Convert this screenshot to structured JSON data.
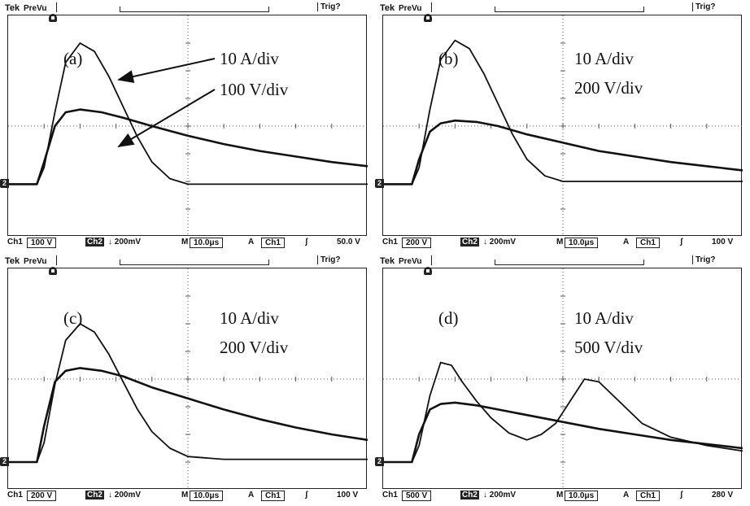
{
  "panels": [
    {
      "tek": "Tek",
      "prevu": "PreVu",
      "trig": "Trig?",
      "ch_marker": "2",
      "panel_label": "(a)",
      "scale_current": "10 A/div",
      "scale_voltage": "100 V/div",
      "status": {
        "ch1": "Ch1",
        "ch1_scale": "100 V",
        "ch2": "Ch2",
        "ch2_scale": "↓ 200mV",
        "m": "M",
        "timebase": "10.0μs",
        "a": "A",
        "trig_src": "Ch1",
        "trig_slope": "ʃ",
        "trig_level": "50.0 V"
      }
    },
    {
      "tek": "Tek",
      "prevu": "PreVu",
      "trig": "Trig?",
      "ch_marker": "2",
      "panel_label": "(b)",
      "scale_current": "10 A/div",
      "scale_voltage": "200 V/div",
      "status": {
        "ch1": "Ch1",
        "ch1_scale": "200 V",
        "ch2": "Ch2",
        "ch2_scale": "↓ 200mV",
        "m": "M",
        "timebase": "10.0μs",
        "a": "A",
        "trig_src": "Ch1",
        "trig_slope": "ʃ",
        "trig_level": "100 V"
      }
    },
    {
      "tek": "Tek",
      "prevu": "PreVu",
      "trig": "Trig?",
      "ch_marker": "2",
      "panel_label": "(c)",
      "scale_current": "10 A/div",
      "scale_voltage": "200 V/div",
      "status": {
        "ch1": "Ch1",
        "ch1_scale": "200 V",
        "ch2": "Ch2",
        "ch2_scale": "↓ 200mV",
        "m": "M",
        "timebase": "10.0μs",
        "a": "A",
        "trig_src": "Ch1",
        "trig_slope": "ʃ",
        "trig_level": "100 V"
      }
    },
    {
      "tek": "Tek",
      "prevu": "PreVu",
      "trig": "Trig?",
      "ch_marker": "2",
      "panel_label": "(d)",
      "scale_current": "10 A/div",
      "scale_voltage": "500 V/div",
      "status": {
        "ch1": "Ch1",
        "ch1_scale": "500 V",
        "ch2": "Ch2",
        "ch2_scale": "↓ 200mV",
        "m": "M",
        "timebase": "10.0μs",
        "a": "A",
        "trig_src": "Ch1",
        "trig_slope": "ʃ",
        "trig_level": "280 V"
      }
    }
  ],
  "chart_data": [
    {
      "type": "line",
      "panel": "(a)",
      "x_unit_per_div": "10.0μs",
      "grid": true,
      "xlim": [
        0,
        10
      ],
      "ylim": [
        -4,
        4
      ],
      "series": [
        {
          "name": "10 A/div",
          "x": [
            0,
            0.8,
            1.0,
            1.3,
            1.6,
            2.0,
            2.4,
            2.8,
            3.2,
            3.6,
            4.0,
            4.5,
            5.0,
            6.0,
            8.0,
            10.0
          ],
          "y": [
            -2.1,
            -2.1,
            -1.5,
            0.5,
            2.3,
            3.0,
            2.7,
            1.8,
            0.7,
            -0.4,
            -1.3,
            -1.9,
            -2.1,
            -2.1,
            -2.1,
            -2.1
          ]
        },
        {
          "name": "100 V/div",
          "x": [
            0,
            0.8,
            1.0,
            1.3,
            1.6,
            2.0,
            2.6,
            3.2,
            4.0,
            5.0,
            6.0,
            7.0,
            8.0,
            9.0,
            10.0
          ],
          "y": [
            -2.1,
            -2.1,
            -1.3,
            0.0,
            0.5,
            0.6,
            0.5,
            0.3,
            0.0,
            -0.35,
            -0.65,
            -0.9,
            -1.1,
            -1.3,
            -1.45
          ]
        }
      ]
    },
    {
      "type": "line",
      "panel": "(b)",
      "x_unit_per_div": "10.0μs",
      "grid": true,
      "xlim": [
        0,
        10
      ],
      "ylim": [
        -4,
        4
      ],
      "series": [
        {
          "name": "10 A/div",
          "x": [
            0,
            0.8,
            1.0,
            1.3,
            1.6,
            2.0,
            2.4,
            2.8,
            3.2,
            3.6,
            4.0,
            4.5,
            5.0,
            6.0,
            8.0,
            10.0
          ],
          "y": [
            -2.1,
            -2.1,
            -1.5,
            0.6,
            2.4,
            3.1,
            2.8,
            1.9,
            0.8,
            -0.3,
            -1.2,
            -1.8,
            -2.0,
            -2.0,
            -2.0,
            -2.0
          ]
        },
        {
          "name": "200 V/div",
          "x": [
            0,
            0.8,
            1.0,
            1.3,
            1.6,
            2.0,
            2.6,
            3.2,
            4.0,
            5.0,
            6.0,
            7.0,
            8.0,
            9.0,
            10.0
          ],
          "y": [
            -2.1,
            -2.1,
            -1.2,
            -0.2,
            0.1,
            0.2,
            0.15,
            0.0,
            -0.3,
            -0.6,
            -0.9,
            -1.1,
            -1.3,
            -1.45,
            -1.6
          ]
        }
      ]
    },
    {
      "type": "line",
      "panel": "(c)",
      "x_unit_per_div": "10.0μs",
      "grid": true,
      "xlim": [
        0,
        10
      ],
      "ylim": [
        -4,
        4
      ],
      "series": [
        {
          "name": "10 A/div",
          "x": [
            0,
            0.8,
            1.0,
            1.3,
            1.6,
            2.0,
            2.4,
            2.8,
            3.2,
            3.6,
            4.0,
            4.5,
            5.0,
            6.0,
            8.0,
            10.0
          ],
          "y": [
            -3.0,
            -3.0,
            -2.3,
            -0.2,
            1.4,
            2.0,
            1.7,
            0.9,
            -0.1,
            -1.1,
            -1.9,
            -2.5,
            -2.8,
            -2.9,
            -2.9,
            -2.9
          ]
        },
        {
          "name": "200 V/div",
          "x": [
            0,
            0.8,
            1.0,
            1.3,
            1.6,
            2.0,
            2.6,
            3.2,
            4.0,
            5.0,
            6.0,
            7.0,
            8.0,
            9.0,
            10.0
          ],
          "y": [
            -3.0,
            -3.0,
            -1.7,
            -0.1,
            0.3,
            0.4,
            0.3,
            0.1,
            -0.3,
            -0.7,
            -1.1,
            -1.45,
            -1.75,
            -2.0,
            -2.2
          ]
        }
      ]
    },
    {
      "type": "line",
      "panel": "(d)",
      "x_unit_per_div": "10.0μs",
      "grid": true,
      "xlim": [
        0,
        10
      ],
      "ylim": [
        -4,
        4
      ],
      "series": [
        {
          "name": "10 A/div",
          "x": [
            0,
            0.8,
            1.0,
            1.3,
            1.6,
            1.9,
            2.2,
            2.6,
            3.0,
            3.5,
            4.0,
            4.4,
            4.8,
            5.2,
            5.6,
            6.0,
            6.4,
            6.8,
            7.2,
            8.0,
            9.0,
            10.0
          ],
          "y": [
            -3.0,
            -3.0,
            -2.4,
            -0.6,
            0.6,
            0.5,
            -0.1,
            -0.8,
            -1.4,
            -1.95,
            -2.2,
            -2.0,
            -1.6,
            -0.8,
            0.0,
            -0.1,
            -0.6,
            -1.1,
            -1.6,
            -2.1,
            -2.4,
            -2.6
          ]
        },
        {
          "name": "500 V/div",
          "x": [
            0,
            0.8,
            1.0,
            1.3,
            1.6,
            2.0,
            2.6,
            3.2,
            4.0,
            5.0,
            6.0,
            7.0,
            8.0,
            9.0,
            10.0
          ],
          "y": [
            -3.0,
            -3.0,
            -2.0,
            -1.1,
            -0.9,
            -0.85,
            -0.95,
            -1.1,
            -1.3,
            -1.55,
            -1.8,
            -2.0,
            -2.2,
            -2.35,
            -2.5
          ]
        }
      ]
    }
  ]
}
